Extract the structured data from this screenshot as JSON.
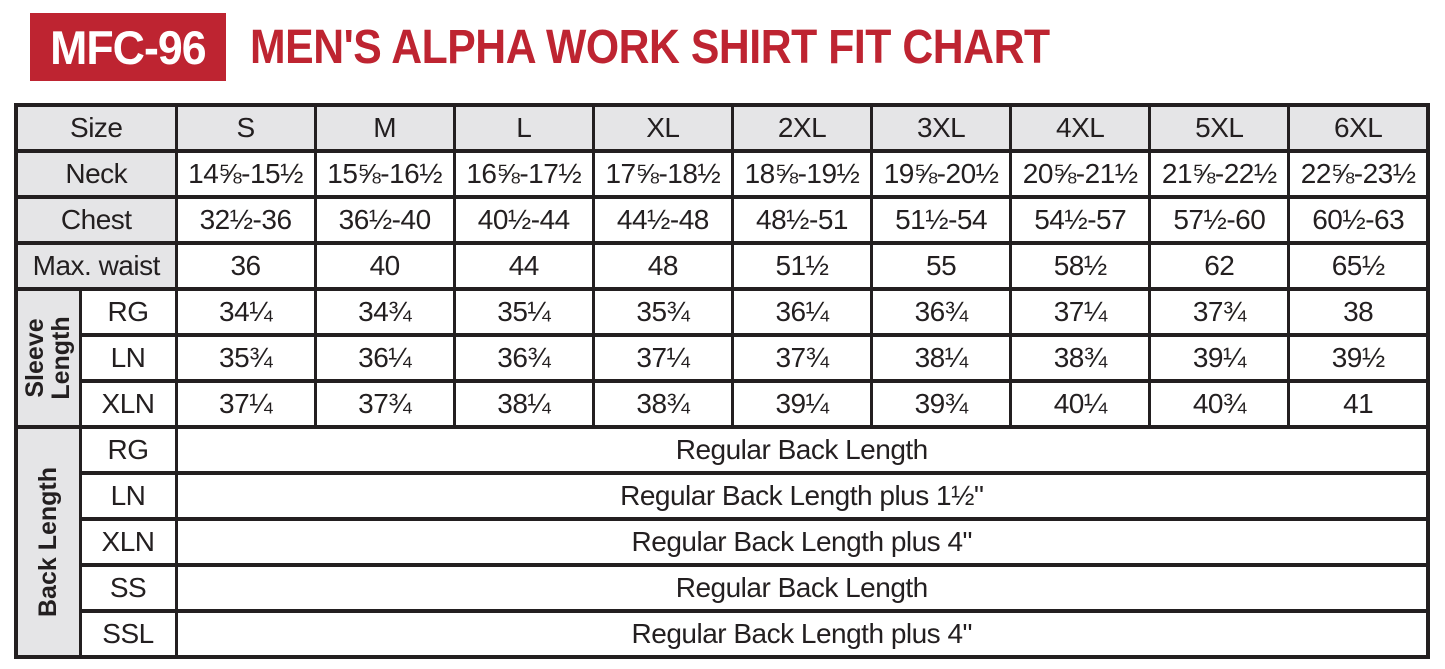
{
  "header": {
    "badge": "MFC-96",
    "title": "MEN'S ALPHA WORK SHIRT FIT CHART"
  },
  "table": {
    "size_label": "Size",
    "sizes": [
      "S",
      "M",
      "L",
      "XL",
      "2XL",
      "3XL",
      "4XL",
      "5XL",
      "6XL"
    ],
    "measurement_rows": [
      {
        "label": "Neck",
        "values": [
          "14⅝-15½",
          "15⅝-16½",
          "16⅝-17½",
          "17⅝-18½",
          "18⅝-19½",
          "19⅝-20½",
          "20⅝-21½",
          "21⅝-22½",
          "22⅝-23½"
        ]
      },
      {
        "label": "Chest",
        "values": [
          "32½-36",
          "36½-40",
          "40½-44",
          "44½-48",
          "48½-51",
          "51½-54",
          "54½-57",
          "57½-60",
          "60½-63"
        ]
      },
      {
        "label": "Max. waist",
        "values": [
          "36",
          "40",
          "44",
          "48",
          "51½",
          "55",
          "58½",
          "62",
          "65½"
        ]
      }
    ],
    "sleeve_length": {
      "group_label": "Sleeve Length",
      "rows": [
        {
          "label": "RG",
          "values": [
            "34¼",
            "34¾",
            "35¼",
            "35¾",
            "36¼",
            "36¾",
            "37¼",
            "37¾",
            "38"
          ]
        },
        {
          "label": "LN",
          "values": [
            "35¾",
            "36¼",
            "36¾",
            "37¼",
            "37¾",
            "38¼",
            "38¾",
            "39¼",
            "39½"
          ]
        },
        {
          "label": "XLN",
          "values": [
            "37¼",
            "37¾",
            "38¼",
            "38¾",
            "39¼",
            "39¾",
            "40¼",
            "40¾",
            "41"
          ]
        }
      ]
    },
    "back_length": {
      "group_label": "Back Length",
      "rows": [
        {
          "label": "RG",
          "value": "Regular Back Length"
        },
        {
          "label": "LN",
          "value": "Regular Back Length plus 1½\""
        },
        {
          "label": "XLN",
          "value": "Regular Back Length plus 4\""
        },
        {
          "label": "SS",
          "value": "Regular Back Length"
        },
        {
          "label": "SSL",
          "value": "Regular Back Length plus 4\""
        }
      ]
    }
  },
  "colors": {
    "accent_red": "#be2431",
    "header_gray": "#e5e5e7",
    "border_ink": "#231f20"
  }
}
